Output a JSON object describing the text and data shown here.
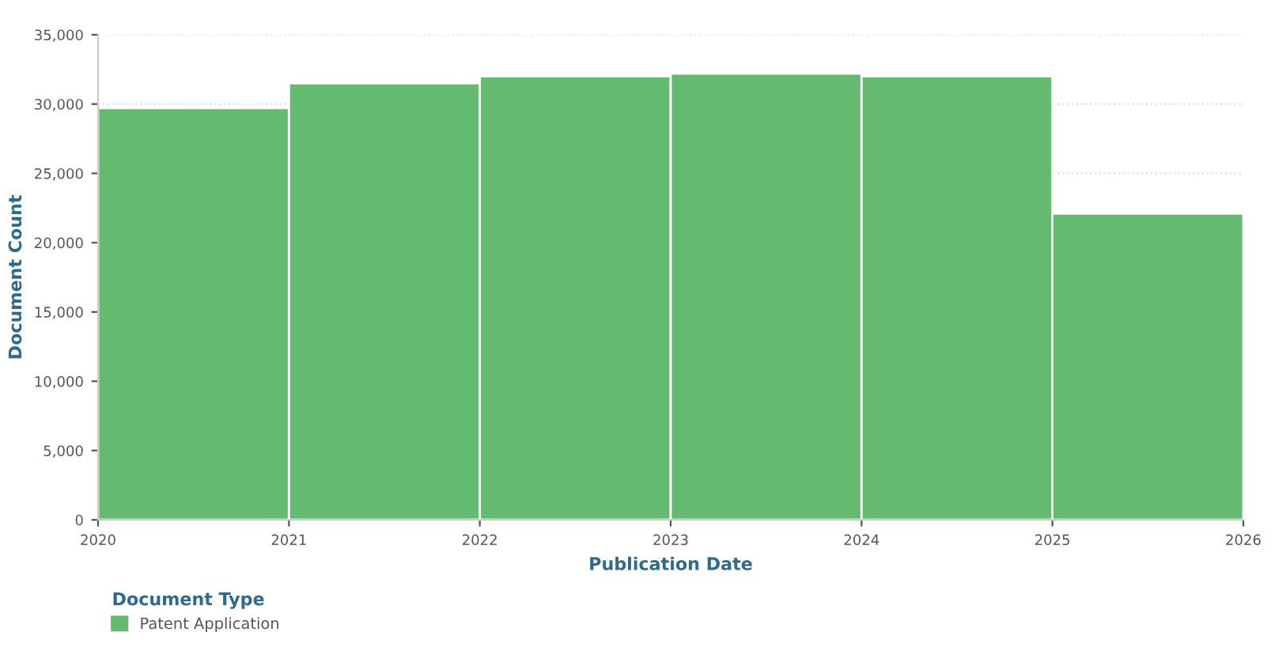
{
  "chart_data": {
    "type": "histogram",
    "xlabel": "Publication Date",
    "ylabel": "Document Count",
    "legend_title": "Document Type",
    "bins": [
      2020,
      2021,
      2022,
      2023,
      2024,
      2025,
      2026
    ],
    "series": [
      {
        "name": "Patent Application",
        "color": "#64bb70",
        "values": [
          29700,
          31500,
          32000,
          32200,
          32000,
          22100
        ]
      }
    ],
    "xlim": [
      2020,
      2026
    ],
    "xticks": [
      2020,
      2021,
      2022,
      2023,
      2024,
      2025,
      2026
    ],
    "ylim": [
      0,
      35000
    ],
    "yticks": [
      {
        "value": 0,
        "label": "0"
      },
      {
        "value": 5000,
        "label": "5,000"
      },
      {
        "value": 10000,
        "label": "10,000"
      },
      {
        "value": 15000,
        "label": "15,000"
      },
      {
        "value": 20000,
        "label": "20,000"
      },
      {
        "value": 25000,
        "label": "25,000"
      },
      {
        "value": 30000,
        "label": "30,000"
      },
      {
        "value": 35000,
        "label": "35,000"
      }
    ],
    "grid": "y",
    "legend": "bottom left"
  }
}
